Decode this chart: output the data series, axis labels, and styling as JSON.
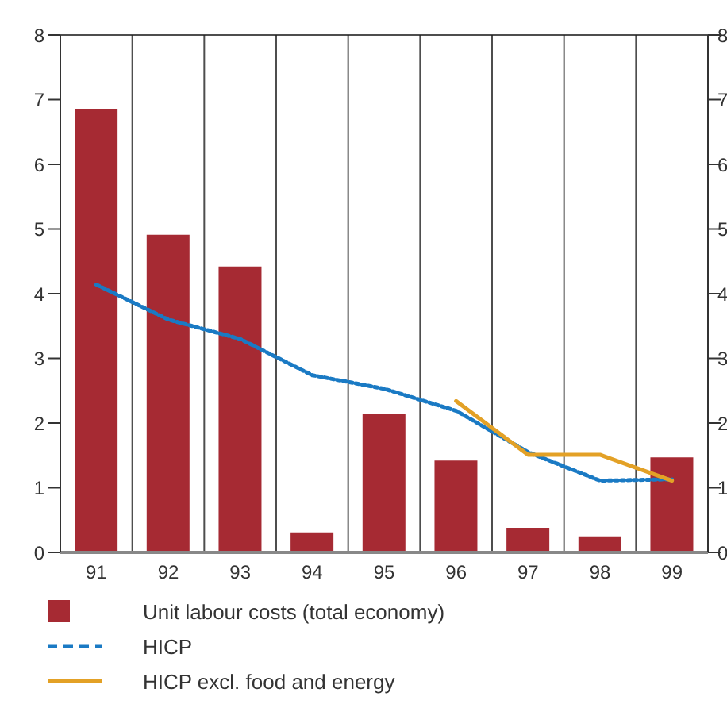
{
  "chart_data": {
    "type": "bar",
    "categories": [
      "91",
      "92",
      "93",
      "94",
      "95",
      "96",
      "97",
      "98",
      "99"
    ],
    "series": [
      {
        "name": "Unit labour costs (total economy)",
        "color": "#a62a33",
        "values": [
          6.86,
          4.91,
          4.42,
          0.31,
          2.14,
          1.42,
          0.38,
          0.25,
          1.47
        ]
      },
      {
        "name": "HICP",
        "type": "line",
        "color": "#1a7ac4",
        "line_style": "dotted",
        "values": [
          4.14,
          3.6,
          3.3,
          2.74,
          2.53,
          2.19,
          1.55,
          1.11,
          1.13
        ]
      },
      {
        "name": "HICP excl. food and energy",
        "type": "line",
        "color": "#e3a126",
        "line_style": "solid",
        "values": [
          null,
          null,
          null,
          null,
          null,
          2.34,
          1.51,
          1.51,
          1.11
        ]
      }
    ],
    "ylim": [
      0,
      8
    ],
    "yticks": [
      0,
      1,
      2,
      3,
      4,
      5,
      6,
      7,
      8
    ],
    "y2lim": [
      0,
      8
    ],
    "y2ticks": [
      0,
      1,
      2,
      3,
      4,
      5,
      6,
      7,
      8
    ],
    "grid": true,
    "legend": "bottom",
    "marker": "none"
  }
}
